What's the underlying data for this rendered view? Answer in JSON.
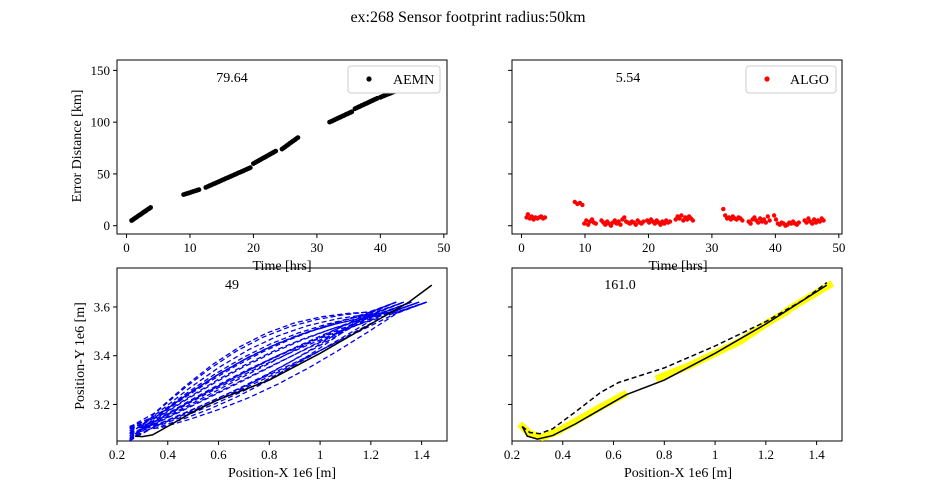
{
  "title": "ex:268  Sensor footprint radius:50km",
  "chart_data": [
    {
      "type": "scatter",
      "annotation": "79.64",
      "xlabel": "Time [hrs]",
      "ylabel": "Error Distance [km]",
      "xlim": [
        -1.5,
        50.5
      ],
      "ylim": [
        -8,
        160
      ],
      "xticks": [
        0,
        10,
        20,
        30,
        40,
        50
      ],
      "yticks": [
        0,
        50,
        100,
        150
      ],
      "legend": "upper right",
      "series": [
        {
          "name": "AEMN",
          "color": "#000000",
          "segments": [
            {
              "x0": 0.8,
              "x1": 3.9,
              "y0": 5,
              "y1": 18,
              "step": 0.2
            },
            {
              "x0": 9.0,
              "x1": 11.5,
              "y0": 30,
              "y1": 35,
              "step": 0.3
            },
            {
              "x0": 12.5,
              "x1": 19.5,
              "y0": 37,
              "y1": 56,
              "step": 0.28
            },
            {
              "x0": 20.0,
              "x1": 23.5,
              "y0": 60,
              "y1": 72,
              "step": 0.25
            },
            {
              "x0": 24.5,
              "x1": 27.2,
              "y0": 74,
              "y1": 86,
              "step": 0.25
            },
            {
              "x0": 32.0,
              "x1": 35.5,
              "y0": 100,
              "y1": 110,
              "step": 0.25
            },
            {
              "x0": 36.0,
              "x1": 39.5,
              "y0": 113,
              "y1": 123,
              "step": 0.25
            },
            {
              "x0": 40.0,
              "x1": 44.0,
              "y0": 124,
              "y1": 134,
              "step": 0.25
            },
            {
              "x0": 44.5,
              "x1": 48.0,
              "y0": 137,
              "y1": 150,
              "step": 0.25
            }
          ]
        }
      ]
    },
    {
      "type": "scatter",
      "annotation": "5.54",
      "xlabel": "Time [hrs]",
      "xlim": [
        -1.5,
        50.5
      ],
      "ylim": [
        -8,
        160
      ],
      "xticks": [
        0,
        10,
        20,
        30,
        40,
        50
      ],
      "yticks": [
        0,
        50,
        100,
        150
      ],
      "legend": "upper right",
      "series": [
        {
          "name": "ALGO",
          "color": "#ff0000",
          "points": [
            [
              0.8,
              8
            ],
            [
              1.0,
              11
            ],
            [
              1.3,
              7
            ],
            [
              1.6,
              9
            ],
            [
              1.9,
              6
            ],
            [
              2.2,
              8
            ],
            [
              2.5,
              7
            ],
            [
              2.8,
              8
            ],
            [
              3.1,
              9
            ],
            [
              3.4,
              7
            ],
            [
              3.7,
              8
            ],
            [
              8.4,
              23
            ],
            [
              8.8,
              21
            ],
            [
              9.2,
              22
            ],
            [
              9.6,
              20
            ],
            [
              9.9,
              2
            ],
            [
              10.2,
              5
            ],
            [
              10.5,
              1
            ],
            [
              10.8,
              4
            ],
            [
              11.1,
              6
            ],
            [
              11.4,
              3
            ],
            [
              11.7,
              2
            ],
            [
              12.6,
              5
            ],
            [
              12.9,
              3
            ],
            [
              13.2,
              1
            ],
            [
              13.5,
              4
            ],
            [
              13.8,
              2
            ],
            [
              14.1,
              0
            ],
            [
              14.4,
              3
            ],
            [
              14.7,
              5
            ],
            [
              15.0,
              2
            ],
            [
              15.3,
              4
            ],
            [
              15.6,
              1
            ],
            [
              15.9,
              6
            ],
            [
              16.2,
              8
            ],
            [
              16.5,
              4
            ],
            [
              16.8,
              3
            ],
            [
              17.1,
              2
            ],
            [
              17.4,
              4
            ],
            [
              17.7,
              3
            ],
            [
              18.0,
              1
            ],
            [
              18.3,
              5
            ],
            [
              18.6,
              3
            ],
            [
              18.9,
              2
            ],
            [
              19.2,
              4
            ],
            [
              19.8,
              5
            ],
            [
              20.1,
              3
            ],
            [
              20.4,
              6
            ],
            [
              20.7,
              4
            ],
            [
              21.0,
              2
            ],
            [
              21.3,
              5
            ],
            [
              21.6,
              3
            ],
            [
              21.9,
              1
            ],
            [
              22.2,
              4
            ],
            [
              22.5,
              2
            ],
            [
              22.8,
              5
            ],
            [
              23.1,
              3
            ],
            [
              23.4,
              4
            ],
            [
              24.3,
              6
            ],
            [
              24.6,
              9
            ],
            [
              24.9,
              7
            ],
            [
              25.2,
              10
            ],
            [
              25.5,
              5
            ],
            [
              25.8,
              8
            ],
            [
              26.1,
              6
            ],
            [
              26.4,
              9
            ],
            [
              26.7,
              7
            ],
            [
              27.0,
              5
            ],
            [
              31.8,
              16
            ],
            [
              32.1,
              10
            ],
            [
              32.4,
              7
            ],
            [
              32.7,
              8
            ],
            [
              33.0,
              6
            ],
            [
              33.3,
              9
            ],
            [
              33.6,
              7
            ],
            [
              33.9,
              6
            ],
            [
              34.2,
              8
            ],
            [
              34.5,
              7
            ],
            [
              34.8,
              5
            ],
            [
              35.8,
              4
            ],
            [
              36.1,
              2
            ],
            [
              36.4,
              6
            ],
            [
              36.7,
              8
            ],
            [
              37.0,
              5
            ],
            [
              37.3,
              3
            ],
            [
              37.6,
              7
            ],
            [
              37.9,
              4
            ],
            [
              38.2,
              6
            ],
            [
              38.5,
              3
            ],
            [
              38.8,
              9
            ],
            [
              39.1,
              5
            ],
            [
              39.8,
              10
            ],
            [
              40.1,
              6
            ],
            [
              40.4,
              2
            ],
            [
              40.7,
              1
            ],
            [
              41.0,
              3
            ],
            [
              41.3,
              2
            ],
            [
              41.6,
              0
            ],
            [
              41.9,
              1
            ],
            [
              42.2,
              3
            ],
            [
              42.5,
              2
            ],
            [
              42.8,
              4
            ],
            [
              43.1,
              2
            ],
            [
              43.4,
              1
            ],
            [
              43.7,
              3
            ],
            [
              44.6,
              5
            ],
            [
              44.9,
              3
            ],
            [
              45.2,
              7
            ],
            [
              45.5,
              4
            ],
            [
              45.8,
              2
            ],
            [
              46.1,
              6
            ],
            [
              46.4,
              3
            ],
            [
              46.7,
              5
            ],
            [
              47.0,
              4
            ],
            [
              47.3,
              7
            ],
            [
              47.6,
              5
            ]
          ]
        }
      ]
    },
    {
      "type": "line",
      "annotation": "49",
      "xlabel": "Position-X 1e6 [m]",
      "ylabel": "Position-Y 1e6 [m]",
      "xlim": [
        0.2,
        1.5
      ],
      "ylim": [
        3.05,
        3.76
      ],
      "xticks": [
        0.2,
        0.4,
        0.6,
        0.8,
        1.0,
        1.2,
        1.4
      ],
      "yticks": [
        3.2,
        3.4,
        3.6
      ],
      "truth": [
        [
          0.27,
          3.07
        ],
        [
          0.3,
          3.068
        ],
        [
          0.34,
          3.075
        ],
        [
          0.4,
          3.11
        ],
        [
          0.5,
          3.17
        ],
        [
          0.6,
          3.22
        ],
        [
          0.8,
          3.3
        ],
        [
          1.0,
          3.41
        ],
        [
          1.2,
          3.53
        ],
        [
          1.35,
          3.62
        ],
        [
          1.44,
          3.69
        ]
      ],
      "est_count": 24
    },
    {
      "type": "line",
      "annotation": "161.0",
      "xlabel": "Position-X 1e6 [m]",
      "xlim": [
        0.2,
        1.5
      ],
      "ylim": [
        3.05,
        3.76
      ],
      "xticks": [
        0.2,
        0.4,
        0.6,
        0.8,
        1.0,
        1.2,
        1.4
      ],
      "yticks": [
        3.2,
        3.4,
        3.6
      ],
      "yellow_segments": [
        [
          [
            0.24,
            3.11
          ],
          [
            0.27,
            3.08
          ],
          [
            0.32,
            3.065
          ],
          [
            0.38,
            3.09
          ],
          [
            0.45,
            3.13
          ],
          [
            0.55,
            3.19
          ],
          [
            0.64,
            3.24
          ]
        ],
        [
          [
            0.78,
            3.31
          ],
          [
            0.9,
            3.36
          ],
          [
            1.0,
            3.41
          ],
          [
            1.1,
            3.46
          ],
          [
            1.2,
            3.53
          ],
          [
            1.28,
            3.58
          ]
        ],
        [
          [
            1.29,
            3.59
          ],
          [
            1.37,
            3.64
          ],
          [
            1.45,
            3.69
          ]
        ]
      ],
      "truth": [
        [
          0.24,
          3.11
        ],
        [
          0.26,
          3.07
        ],
        [
          0.3,
          3.058
        ],
        [
          0.36,
          3.072
        ],
        [
          0.45,
          3.12
        ],
        [
          0.55,
          3.18
        ],
        [
          0.65,
          3.24
        ],
        [
          0.8,
          3.3
        ],
        [
          1.0,
          3.41
        ],
        [
          1.2,
          3.53
        ],
        [
          1.35,
          3.63
        ],
        [
          1.44,
          3.69
        ]
      ],
      "estimate": [
        [
          0.24,
          3.11
        ],
        [
          0.27,
          3.085
        ],
        [
          0.31,
          3.08
        ],
        [
          0.36,
          3.1
        ],
        [
          0.45,
          3.17
        ],
        [
          0.55,
          3.25
        ],
        [
          0.62,
          3.29
        ],
        [
          0.8,
          3.35
        ],
        [
          1.0,
          3.44
        ],
        [
          1.2,
          3.54
        ],
        [
          1.35,
          3.63
        ],
        [
          1.44,
          3.7
        ]
      ]
    }
  ]
}
